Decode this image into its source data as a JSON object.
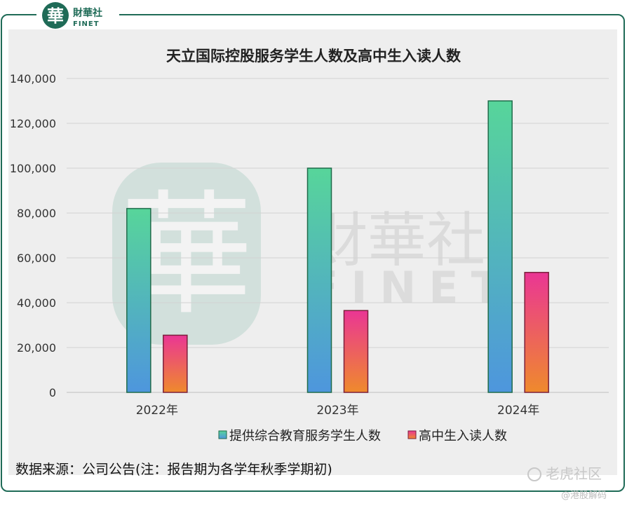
{
  "brand": {
    "logo_glyph": "華",
    "name": "財華社",
    "sub": "FINET"
  },
  "watermark": {
    "logo_glyph": "華",
    "name": "財華社",
    "sub": "FINET"
  },
  "chart_data": {
    "type": "bar",
    "title": "天立国际控股服务学生人数及高中生入读人数",
    "categories": [
      "2022年",
      "2023年",
      "2024年"
    ],
    "series": [
      {
        "name": "提供综合教育服务学生人数",
        "values": [
          82000,
          100000,
          130000
        ],
        "color_top": "#57d59a",
        "color_bottom": "#4e96dd"
      },
      {
        "name": "高中生入读人数",
        "values": [
          25500,
          36500,
          53500
        ],
        "color_top": "#ea3694",
        "color_bottom": "#ef8a2c"
      }
    ],
    "ylim": [
      0,
      140000
    ],
    "yticks": [
      "0",
      "20,000",
      "40,000",
      "60,000",
      "80,000",
      "100,000",
      "120,000",
      "140,000"
    ],
    "xlabel": "",
    "ylabel": "",
    "grid": true,
    "legend": "bottom"
  },
  "source_note": "数据来源：公司公告(注：报告期为各学年秋季学期初)",
  "corner_mark": {
    "icon": "tiger-icon",
    "text": "老虎社区",
    "sub": "@港股解码"
  }
}
